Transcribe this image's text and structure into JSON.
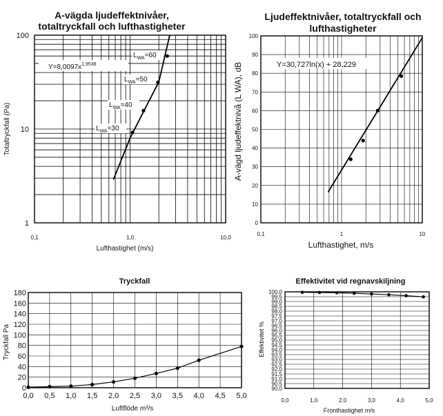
{
  "chart_data": [
    {
      "type": "line",
      "title": [
        "A-vägda ljudeffektnivåer,",
        "totaltryckfall och lufthastigheter"
      ],
      "xlabel": "Lufthastighet (m/s)",
      "ylabel": "Totaltryckfall (Pa)",
      "xscale": "log",
      "yscale": "log",
      "xlim": [
        0.1,
        10
      ],
      "ylim": [
        1,
        100
      ],
      "x_ticks": [
        "0,1",
        "1,0",
        "10,0"
      ],
      "y_ticks": [
        "1",
        "10",
        "100"
      ],
      "series": [
        {
          "x": [
            0.67,
            1.0,
            1.5,
            2.0,
            2.6
          ],
          "y": [
            2.9,
            8.0,
            18.0,
            31.8,
            100
          ]
        }
      ],
      "points": [
        {
          "x": 1.06,
          "y": 9.2
        },
        {
          "x": 1.38,
          "y": 15.7
        },
        {
          "x": 1.96,
          "y": 31.5
        },
        {
          "x": 2.45,
          "y": 60.0
        }
      ],
      "equation": {
        "text": "Y=8,0097x",
        "exp": "1,9538"
      },
      "annotations": [
        {
          "main": "L",
          "sub": "WA",
          "tail": "=60"
        },
        {
          "main": "L",
          "sub": "WA",
          "tail": "=50"
        },
        {
          "main": "L",
          "sub": "WA",
          "tail": "=40"
        },
        {
          "main": "L",
          "sub": "WA",
          "tail": "=30"
        }
      ],
      "grid": true
    },
    {
      "type": "line",
      "title": [
        "Ljudeffektnivåer, totaltryckfall och",
        "lufthastigheter"
      ],
      "xlabel": "Lufthastighet, m/s",
      "ylabel": "A-vägd ljudeffektnivå (L WA), dB",
      "xscale": "log",
      "xlim": [
        0.1,
        10
      ],
      "ylim": [
        0,
        100
      ],
      "x_ticks": [
        "0,1",
        "1",
        "10"
      ],
      "y_ticks": [
        "0",
        "10",
        "20",
        "30",
        "40",
        "50",
        "60",
        "70",
        "80",
        "90",
        "100"
      ],
      "series": [
        {
          "x": [
            0.68,
            10
          ],
          "y": [
            16.4,
            99.0
          ]
        }
      ],
      "points": [
        {
          "x": 1.3,
          "y": 34.0
        },
        {
          "x": 1.85,
          "y": 44.0
        },
        {
          "x": 2.8,
          "y": 60.0
        },
        {
          "x": 5.5,
          "y": 78.5
        }
      ],
      "equation": "Y=30,727ln(x) + 28,229",
      "grid": true
    },
    {
      "type": "line",
      "title": "Tryckfall",
      "xlabel": "Luftflöde m³/s",
      "ylabel": "Tryckfall Pa",
      "xlim": [
        0,
        5
      ],
      "ylim": [
        0,
        180
      ],
      "x_ticks": [
        "0,0",
        "0,5",
        "1,0",
        "1,5",
        "2,0",
        "2,5",
        "3,0",
        "3,5",
        "4,0",
        "4,5",
        "5,0"
      ],
      "y_ticks": [
        "0",
        "20",
        "40",
        "60",
        "80",
        "100",
        "120",
        "140",
        "160",
        "180"
      ],
      "series": [
        {
          "x": [
            0,
            0.5,
            1.0,
            1.5,
            2.0,
            2.5,
            3.0,
            3.5,
            4.0,
            5.0
          ],
          "y": [
            1,
            2,
            3,
            6,
            11,
            18,
            27,
            37,
            52,
            78
          ]
        }
      ],
      "grid": true
    },
    {
      "type": "line",
      "title": "Effektivitet vid regnavskiljning",
      "xlabel": "Fronthastighet m/s",
      "ylabel": "Effektivitet %",
      "xlim": [
        0,
        5
      ],
      "ylim": [
        90,
        100
      ],
      "x_ticks": [
        "0,0",
        "1,0",
        "2,0",
        "3,0",
        "4,0",
        "5,0"
      ],
      "y_ticks": [
        "90,0",
        "90,5",
        "91,0",
        "91,5",
        "92,0",
        "92,5",
        "93,0",
        "93,5",
        "94,0",
        "94,5",
        "95,0",
        "95,5",
        "96,0",
        "96,5",
        "97,0",
        "97,5",
        "98,0",
        "98,5",
        "99,0",
        "99,5",
        "100,0"
      ],
      "series": [
        {
          "x": [
            0.6,
            1.2,
            1.8,
            2.4,
            3.0,
            3.6,
            4.2,
            4.8
          ],
          "y": [
            99.95,
            99.93,
            99.9,
            99.85,
            99.78,
            99.7,
            99.6,
            99.48
          ]
        }
      ],
      "grid": true
    }
  ]
}
